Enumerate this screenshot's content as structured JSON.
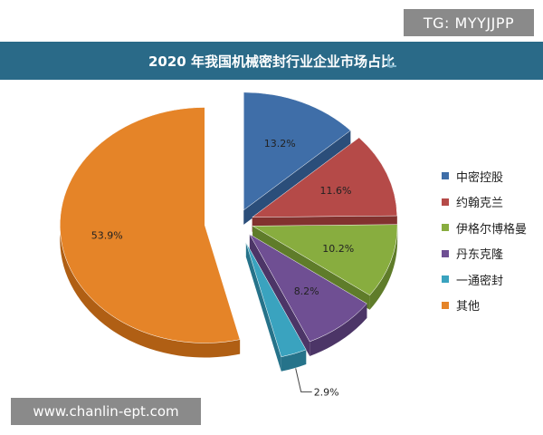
{
  "watermark_top": "TG: MYYJJPP",
  "watermark_bottom": "www.chanlin-ept.com",
  "chart_data": {
    "type": "pie",
    "title": "2020 年我国机械密封行业企业市场占比",
    "legend_position": "right",
    "slices": [
      {
        "label": "中密控股",
        "value": 13.2,
        "value_label": "13.2%",
        "color": "#3f6ea8",
        "side": "#2b4e7a"
      },
      {
        "label": "约翰克兰",
        "value": 11.6,
        "value_label": "11.6%",
        "color": "#b54a48",
        "side": "#82322f"
      },
      {
        "label": "伊格尔博格曼",
        "value": 10.2,
        "value_label": "10.2%",
        "color": "#88ad3f",
        "side": "#5f7c2a"
      },
      {
        "label": "丹东克隆",
        "value": 8.2,
        "value_label": "8.2%",
        "color": "#6f4f93",
        "side": "#4c3567"
      },
      {
        "label": "一通密封",
        "value": 2.9,
        "value_label": "2.9%",
        "color": "#3aa3bf",
        "side": "#26738a"
      },
      {
        "label": "其他",
        "value": 53.9,
        "value_label": "53.9%",
        "color": "#e58428",
        "side": "#b05f14"
      }
    ]
  }
}
